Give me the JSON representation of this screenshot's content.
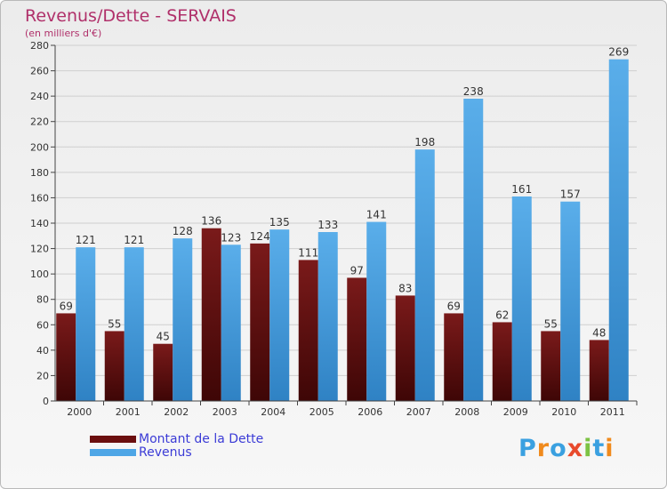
{
  "chart_data": {
    "type": "bar",
    "title": "Revenus/Dette - SERVAIS",
    "subtitle": "(en milliers d'€)",
    "categories": [
      "2000",
      "2001",
      "2002",
      "2003",
      "2004",
      "2005",
      "2006",
      "2007",
      "2008",
      "2009",
      "2010",
      "2011"
    ],
    "series": [
      {
        "name": "Montant de la Dette",
        "color": "#6b0f0f",
        "values": [
          69,
          55,
          45,
          136,
          124,
          111,
          97,
          83,
          69,
          62,
          55,
          48
        ]
      },
      {
        "name": "Revenus",
        "color": "#4ea6e6",
        "values": [
          121,
          121,
          128,
          123,
          135,
          133,
          141,
          198,
          238,
          161,
          157,
          269
        ]
      }
    ],
    "ylim": [
      0,
      280
    ],
    "yticks": [
      0,
      20,
      40,
      60,
      80,
      100,
      120,
      140,
      160,
      180,
      200,
      220,
      240,
      260,
      280
    ],
    "grid": true,
    "legend_position": "bottom-left"
  },
  "logo": {
    "text": "Proxiti",
    "letters": [
      "P",
      "r",
      "o",
      "x",
      "i",
      "t",
      "i"
    ],
    "colors": [
      "#3aa0e0",
      "#f08a1c",
      "#3aa0e0",
      "#e84a2c",
      "#7cc243",
      "#3aa0e0",
      "#f08a1c"
    ]
  }
}
